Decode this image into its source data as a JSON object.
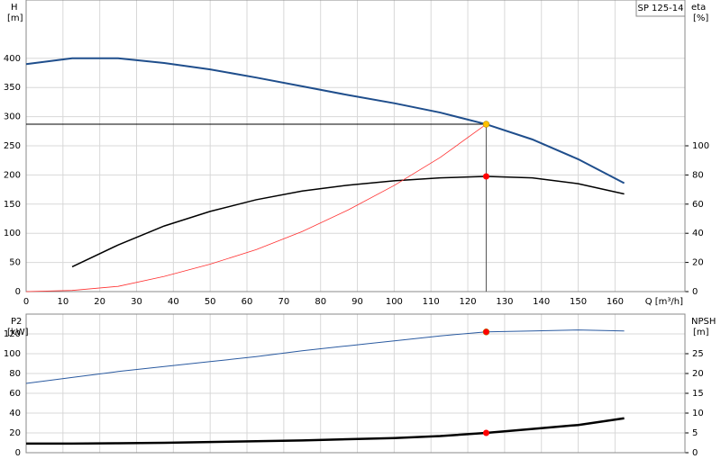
{
  "chart_data": [
    {
      "type": "line",
      "label": "SP 125-14",
      "ylabel": "H",
      "yunit": "[m]",
      "y2label": "eta",
      "y2unit": "[%]",
      "xlabel": "Q [m³/h]",
      "x": [
        0,
        12.5,
        25,
        37.5,
        50,
        62.5,
        75,
        87.5,
        100,
        112.5,
        125,
        137.5,
        150,
        162.5
      ],
      "xlim": [
        0,
        179
      ],
      "xticks": [
        0,
        10,
        20,
        30,
        40,
        50,
        60,
        70,
        80,
        90,
        100,
        110,
        120,
        130,
        140,
        150,
        160
      ],
      "ylim": [
        0,
        500
      ],
      "yticks": [
        0,
        50,
        100,
        150,
        200,
        250,
        300,
        350,
        400
      ],
      "y2lim": [
        0,
        200
      ],
      "y2ticks": [
        0,
        20,
        40,
        60,
        80,
        100
      ],
      "grid": true,
      "series": [
        {
          "color": "#1f4e8c",
          "width": 2,
          "axis": "y",
          "values": [
            390,
            400,
            400,
            392,
            381,
            367,
            352,
            337,
            323,
            307,
            287,
            261,
            227,
            186
          ]
        },
        {
          "color": "#000000",
          "width": 1.5,
          "axis": "y2",
          "values": [
            null,
            17,
            32,
            45,
            55,
            63,
            69,
            73,
            76,
            78,
            79,
            78,
            74,
            67
          ]
        },
        {
          "color": "#ff3030",
          "width": 0.8,
          "axis": "y",
          "values": [
            0,
            2,
            9,
            26,
            47,
            72,
            103,
            140,
            182,
            230,
            287,
            null,
            null,
            null
          ]
        }
      ],
      "operating_point": {
        "x": 125,
        "y": 287,
        "y2": 79,
        "y_color": "#ffc000",
        "y2_color": "#ff0000"
      }
    },
    {
      "type": "line",
      "ylabel": "P2",
      "yunit": "[kW]",
      "y2label": "NPSH",
      "y2unit": "[m]",
      "x": [
        0,
        12.5,
        25,
        37.5,
        50,
        62.5,
        75,
        87.5,
        100,
        112.5,
        125,
        137.5,
        150,
        162.5
      ],
      "xlim": [
        0,
        179
      ],
      "ylim": [
        0,
        140
      ],
      "yticks": [
        0,
        20,
        40,
        60,
        80,
        100,
        120
      ],
      "y2lim": [
        0,
        35
      ],
      "y2ticks": [
        0,
        5,
        10,
        15,
        20,
        25
      ],
      "grid": true,
      "series": [
        {
          "color": "#2a5aa0",
          "width": 1,
          "axis": "y",
          "values": [
            70,
            76,
            82,
            87,
            92,
            97,
            103,
            108,
            113,
            118,
            122,
            123,
            124,
            123
          ]
        },
        {
          "color": "#000000",
          "width": 2.5,
          "axis": "y2",
          "values": [
            2.3,
            2.3,
            2.4,
            2.5,
            2.7,
            2.9,
            3.1,
            3.4,
            3.7,
            4.2,
            5,
            6,
            7,
            8.7
          ]
        }
      ],
      "operating_point": {
        "x": 125,
        "y": 122,
        "y2": 5,
        "y_color": "#ff0000",
        "y2_color": "#ff0000"
      }
    }
  ]
}
